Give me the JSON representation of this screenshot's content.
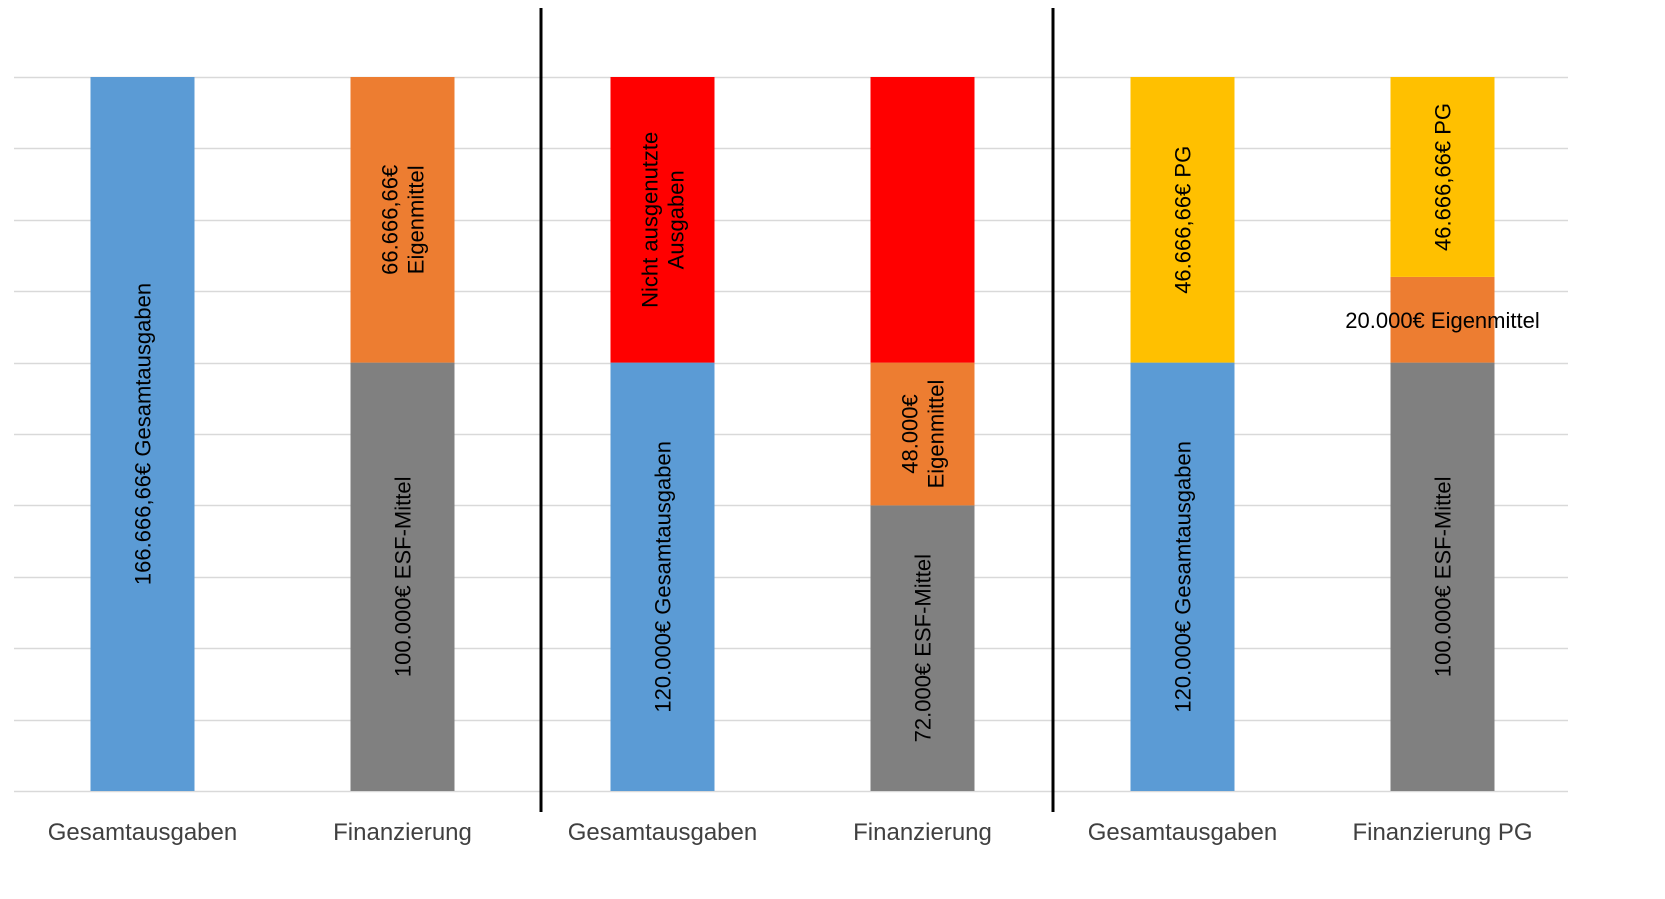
{
  "colors": {
    "blue": "#5B9BD5",
    "orange": "#ED7D31",
    "gray": "#808080",
    "red": "#FF0000",
    "yellow": "#FFC000",
    "grid": "#D9D9D9",
    "divider": "#000000"
  },
  "chart_data": {
    "type": "bar",
    "stacked": true,
    "grid": true,
    "legend": "none",
    "title": "",
    "xlabel": "",
    "ylabel": "",
    "ylim": [
      0,
      10
    ],
    "y_ticks": [],
    "categories": [
      "Gesamtausgaben",
      "Finanzierung",
      "Gesamtausgaben",
      "Finanzierung",
      "Gesamtausgaben",
      "Finanzierung PG"
    ],
    "group_dividers_after": [
      1,
      3
    ],
    "bars": [
      {
        "category": "Gesamtausgaben",
        "segments": [
          {
            "value": 10,
            "color": "blue",
            "lines": [
              "166.666,66€ Gesamtausgaben"
            ]
          }
        ]
      },
      {
        "category": "Finanzierung",
        "segments": [
          {
            "value": 6,
            "color": "gray",
            "lines": [
              "100.000€ ESF-Mittel"
            ]
          },
          {
            "value": 4,
            "color": "orange",
            "lines": [
              "66.666,66€",
              "Eigenmittel"
            ]
          }
        ]
      },
      {
        "category": "Gesamtausgaben",
        "segments": [
          {
            "value": 6,
            "color": "blue",
            "lines": [
              "120.000€ Gesamtausgaben"
            ]
          },
          {
            "value": 4,
            "color": "red",
            "lines": [
              "Nicht ausgenutzte",
              "Ausgaben"
            ]
          }
        ]
      },
      {
        "category": "Finanzierung",
        "segments": [
          {
            "value": 4,
            "color": "gray",
            "lines": [
              "72.000€ ESF-Mittel"
            ]
          },
          {
            "value": 2,
            "color": "orange",
            "lines": [
              "48.000€",
              "Eigenmittel"
            ]
          },
          {
            "value": 4,
            "color": "red",
            "lines": []
          }
        ]
      },
      {
        "category": "Gesamtausgaben",
        "segments": [
          {
            "value": 6,
            "color": "blue",
            "lines": [
              "120.000€ Gesamtausgaben"
            ]
          },
          {
            "value": 4,
            "color": "yellow",
            "lines": [
              "46.666,66€ PG"
            ]
          }
        ]
      },
      {
        "category": "Finanzierung PG",
        "segments": [
          {
            "value": 6,
            "color": "gray",
            "lines": [
              "100.000€ ESF-Mittel"
            ]
          },
          {
            "value": 1.2,
            "color": "orange",
            "lines": [
              "20.000€ Eigenmittel"
            ],
            "label_horizontal": true
          },
          {
            "value": 2.8,
            "color": "yellow",
            "lines": [
              "46.666,66€ PG"
            ]
          }
        ]
      }
    ]
  }
}
